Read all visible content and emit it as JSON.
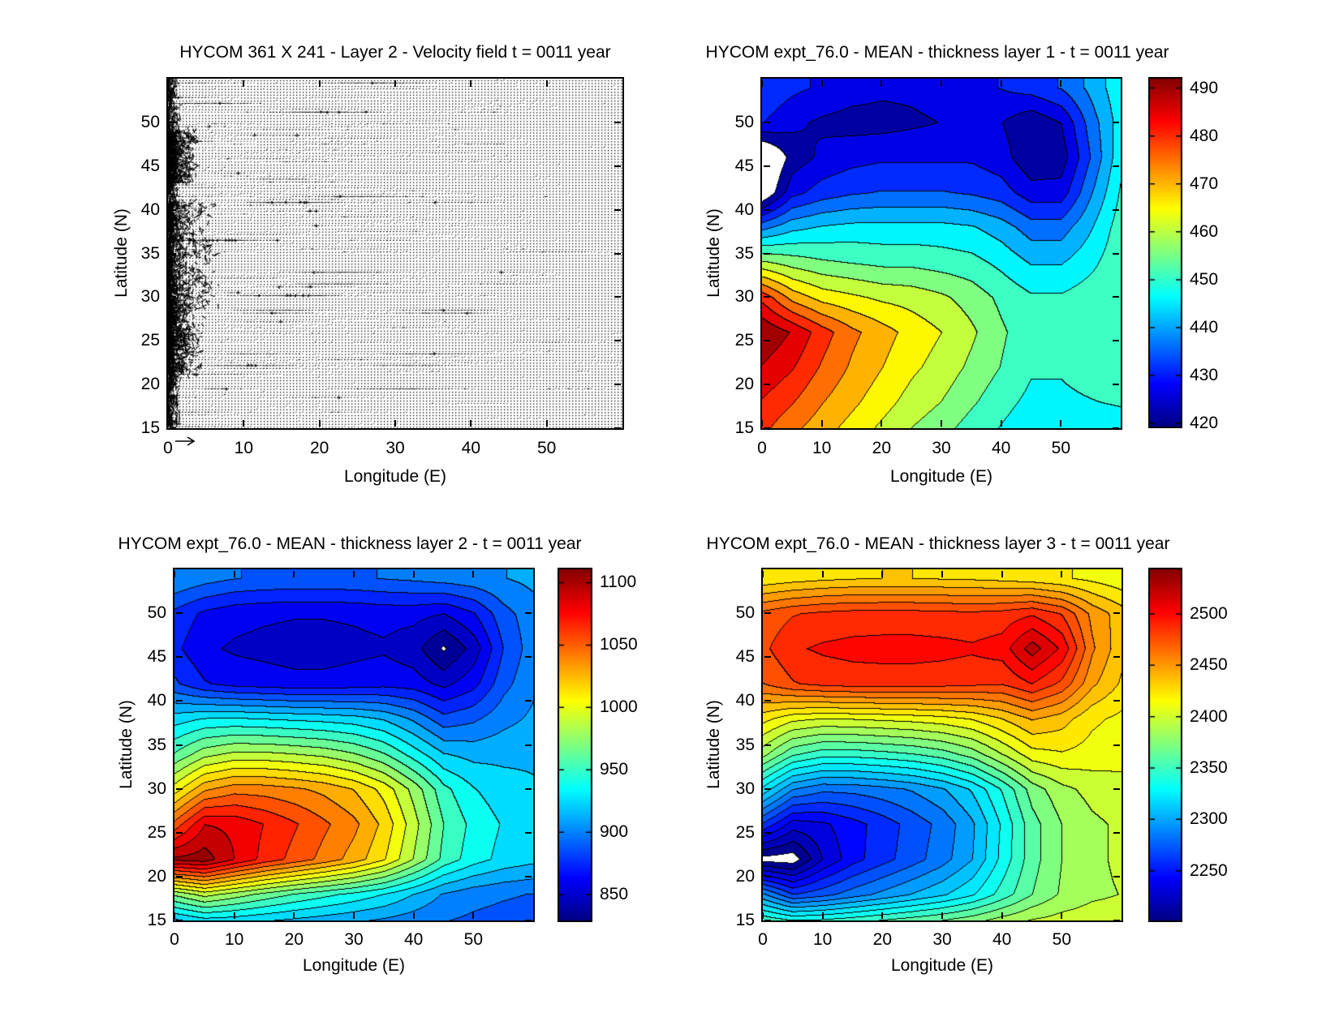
{
  "page": {
    "background": "#ffffff",
    "colormap": "jet",
    "arrow_color": "#000000"
  },
  "chart_data": [
    {
      "type": "quiver",
      "title": "HYCOM 361 X 241 - Layer 2 - Velocity field  t = 0011 year",
      "xlabel": "Longitude (E)",
      "ylabel": "Latitude (N)",
      "xlim": [
        0,
        60
      ],
      "ylim": [
        15,
        55
      ],
      "xticks": [
        0,
        10,
        20,
        30,
        40,
        50
      ],
      "yticks": [
        15,
        20,
        25,
        30,
        35,
        40,
        45,
        50
      ],
      "grid_on": false,
      "description": "dense field of tiny black velocity arrows; strong chaotic western boundary current hugging x=0; weak mostly-zonal interior flow; reference key arrow below axis at origin",
      "quiver_params": {
        "nx": 140,
        "ny": 120,
        "seed": 20110,
        "boundary_bands": [
          [
            21,
            29,
            5
          ],
          [
            29,
            41,
            7
          ],
          [
            43,
            49,
            4
          ]
        ]
      },
      "key_arrow": true
    },
    {
      "type": "heatmap",
      "title": "HYCOM expt_76.0 - MEAN - thickness layer 1 - t = 0011 year",
      "xlabel": "Longitude (E)",
      "ylabel": "Latitude (N)",
      "xlim": [
        0,
        60
      ],
      "ylim": [
        15,
        55
      ],
      "xticks": [
        0,
        10,
        20,
        30,
        40,
        50
      ],
      "yticks": [
        15,
        20,
        25,
        30,
        35,
        40,
        45,
        50
      ],
      "levels": 15,
      "colorbar": {
        "vmin": 419,
        "vmax": 492.3,
        "ticks": [
          420,
          430,
          440,
          450,
          460,
          470,
          480,
          490
        ]
      },
      "white_below_vmin": true,
      "grid": {
        "lons": [
          0,
          5,
          10,
          15,
          20,
          25,
          30,
          35,
          40,
          45,
          50,
          55,
          60
        ],
        "lats": [
          54,
          50,
          46,
          42,
          38,
          34,
          30,
          26,
          22,
          18,
          15
        ],
        "values": [
          [
            433,
            430,
            428,
            426,
            425,
            425,
            426,
            427,
            429,
            431,
            434,
            440,
            447
          ],
          [
            429,
            425,
            423,
            422,
            422,
            423,
            424,
            425,
            424,
            420,
            424,
            436,
            446
          ],
          [
            410,
            421,
            425,
            427,
            428,
            428,
            428,
            428,
            426,
            420,
            421,
            434,
            447
          ],
          [
            413,
            427,
            431,
            433,
            434,
            434,
            434,
            433,
            431,
            426,
            426,
            438,
            449
          ],
          [
            437,
            442,
            444,
            445,
            445,
            445,
            445,
            444,
            441,
            436,
            436,
            443,
            451
          ],
          [
            459,
            456,
            454,
            453,
            452,
            452,
            451,
            450,
            447,
            443,
            443,
            447,
            452
          ],
          [
            481,
            471,
            466,
            464,
            462,
            461,
            459,
            456,
            452,
            449,
            449,
            451,
            452
          ],
          [
            492,
            487,
            480,
            474,
            470,
            466,
            463,
            459,
            454,
            450,
            450,
            452,
            453
          ],
          [
            487,
            483,
            477,
            472,
            468,
            464,
            461,
            457,
            453,
            449,
            449,
            451,
            452
          ],
          [
            482,
            478,
            473,
            469,
            465,
            461,
            458,
            454,
            450,
            447,
            447,
            448,
            449
          ],
          [
            479,
            474,
            470,
            466,
            462,
            458,
            455,
            451,
            448,
            445,
            444,
            444,
            445
          ]
        ]
      }
    },
    {
      "type": "heatmap",
      "title": "HYCOM expt_76.0 - MEAN - thickness layer 2 - t = 0011 year",
      "xlabel": "Longitude (E)",
      "ylabel": "Latitude (N)",
      "xlim": [
        0,
        60
      ],
      "ylim": [
        15,
        55
      ],
      "xticks": [
        0,
        10,
        20,
        30,
        40,
        50
      ],
      "yticks": [
        15,
        20,
        25,
        30,
        35,
        40,
        45,
        50
      ],
      "levels": 22,
      "colorbar": {
        "vmin": 828,
        "vmax": 1112,
        "ticks": [
          850,
          900,
          950,
          1000,
          1050,
          1100
        ]
      },
      "white_below_vmin": true,
      "grid": {
        "lons": [
          0,
          5,
          10,
          15,
          20,
          25,
          30,
          35,
          40,
          45,
          50,
          55,
          60
        ],
        "lats": [
          54,
          50,
          46,
          42,
          38,
          34,
          30,
          26,
          22,
          18,
          15
        ],
        "values": [
          [
            905,
            898,
            893,
            891,
            890,
            890,
            891,
            893,
            895,
            898,
            901,
            905,
            909
          ],
          [
            876,
            864,
            858,
            856,
            855,
            855,
            856,
            858,
            858,
            854,
            866,
            888,
            900
          ],
          [
            870,
            856,
            852,
            850,
            848,
            848,
            850,
            852,
            846,
            826,
            846,
            880,
            900
          ],
          [
            882,
            868,
            862,
            860,
            858,
            858,
            860,
            862,
            860,
            850,
            862,
            888,
            903
          ],
          [
            925,
            932,
            933,
            931,
            929,
            927,
            924,
            917,
            903,
            884,
            890,
            901,
            908
          ],
          [
            958,
            978,
            986,
            986,
            983,
            979,
            971,
            958,
            938,
            919,
            914,
            915,
            916
          ],
          [
            1002,
            1032,
            1042,
            1041,
            1037,
            1031,
            1021,
            1004,
            978,
            948,
            932,
            924,
            920
          ],
          [
            1052,
            1086,
            1083,
            1073,
            1062,
            1050,
            1038,
            1018,
            988,
            957,
            940,
            930,
            925
          ],
          [
            1102,
            1106,
            1086,
            1069,
            1056,
            1043,
            1029,
            1010,
            982,
            953,
            937,
            927,
            922
          ],
          [
            972,
            988,
            977,
            966,
            956,
            948,
            940,
            931,
            918,
            904,
            897,
            894,
            892
          ],
          [
            915,
            925,
            923,
            919,
            915,
            911,
            907,
            903,
            898,
            893,
            890,
            888,
            887
          ]
        ]
      }
    },
    {
      "type": "heatmap",
      "title": "HYCOM expt_76.0 - MEAN - thickness layer 3 - t = 0011 year",
      "xlabel": "Longitude (E)",
      "ylabel": "Latitude (N)",
      "xlim": [
        0,
        60
      ],
      "ylim": [
        15,
        55
      ],
      "xticks": [
        0,
        10,
        20,
        30,
        40,
        50
      ],
      "yticks": [
        15,
        20,
        25,
        30,
        35,
        40,
        45,
        50
      ],
      "levels": 27,
      "colorbar": {
        "vmin": 2200,
        "vmax": 2545,
        "ticks": [
          2250,
          2300,
          2350,
          2400,
          2450,
          2500
        ]
      },
      "white_below_vmin": true,
      "grid": {
        "lons": [
          0,
          5,
          10,
          15,
          20,
          25,
          30,
          35,
          40,
          45,
          50,
          55,
          60
        ],
        "lats": [
          54,
          50,
          46,
          42,
          38,
          34,
          30,
          26,
          22,
          18,
          15
        ],
        "values": [
          [
            2420,
            2424,
            2427,
            2429,
            2430,
            2430,
            2429,
            2428,
            2426,
            2423,
            2419,
            2414,
            2408
          ],
          [
            2472,
            2480,
            2484,
            2486,
            2486,
            2486,
            2485,
            2484,
            2486,
            2492,
            2480,
            2452,
            2436
          ],
          [
            2478,
            2492,
            2496,
            2498,
            2499,
            2499,
            2498,
            2496,
            2500,
            2526,
            2504,
            2458,
            2434
          ],
          [
            2468,
            2480,
            2485,
            2487,
            2487,
            2487,
            2486,
            2484,
            2482,
            2494,
            2478,
            2446,
            2428
          ],
          [
            2422,
            2408,
            2404,
            2405,
            2407,
            2409,
            2412,
            2418,
            2430,
            2444,
            2436,
            2420,
            2414
          ],
          [
            2384,
            2356,
            2346,
            2346,
            2349,
            2353,
            2360,
            2372,
            2392,
            2412,
            2416,
            2412,
            2409
          ],
          [
            2324,
            2290,
            2280,
            2281,
            2285,
            2291,
            2301,
            2317,
            2342,
            2372,
            2388,
            2396,
            2400
          ],
          [
            2262,
            2232,
            2236,
            2246,
            2257,
            2269,
            2281,
            2300,
            2330,
            2361,
            2379,
            2389,
            2394
          ],
          [
            2194,
            2192,
            2226,
            2246,
            2259,
            2271,
            2284,
            2302,
            2332,
            2361,
            2379,
            2389,
            2394
          ],
          [
            2292,
            2264,
            2272,
            2283,
            2293,
            2303,
            2313,
            2326,
            2346,
            2366,
            2381,
            2389,
            2392
          ],
          [
            2352,
            2342,
            2344,
            2349,
            2355,
            2361,
            2367,
            2375,
            2385,
            2393,
            2397,
            2399,
            2399
          ]
        ]
      }
    }
  ]
}
